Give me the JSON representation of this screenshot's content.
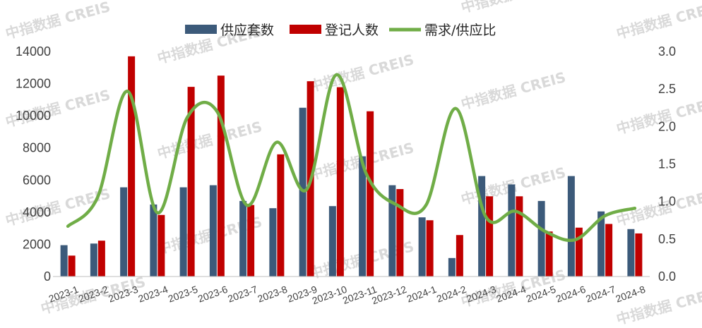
{
  "watermark": "中指数据 CREIS",
  "chart_data": {
    "type": "bar",
    "categories": [
      "2023-1",
      "2023-2",
      "2023-3",
      "2023-4",
      "2023-5",
      "2023-6",
      "2023-7",
      "2023-8",
      "2023-9",
      "2023-10",
      "2023-11",
      "2023-12",
      "2024-1",
      "2024-2",
      "2024-3",
      "2024-4",
      "2024-5",
      "2024-6",
      "2024-7",
      "2024-8"
    ],
    "series": [
      {
        "name": "供应套数",
        "kind": "bar",
        "axis": "left",
        "color": "#3c5a7a",
        "values": [
          1950,
          2050,
          5550,
          4480,
          5550,
          5680,
          4700,
          4250,
          10500,
          4380,
          7480,
          5680,
          3680,
          1150,
          6250,
          5730,
          4700,
          6250,
          4050,
          2950
        ]
      },
      {
        "name": "登记人数",
        "kind": "bar",
        "axis": "left",
        "color": "#c00000",
        "values": [
          1300,
          2230,
          13700,
          3830,
          11800,
          12500,
          4450,
          7600,
          12150,
          11780,
          10280,
          5440,
          3500,
          2580,
          4990,
          4990,
          2800,
          3040,
          3270,
          2680
        ]
      },
      {
        "name": "需求/供应比",
        "kind": "line",
        "axis": "right",
        "color": "#70ad47",
        "values": [
          0.67,
          1.06,
          2.47,
          0.85,
          2.12,
          2.2,
          0.95,
          1.79,
          1.16,
          2.69,
          1.37,
          0.96,
          0.95,
          2.24,
          0.8,
          0.87,
          0.6,
          0.49,
          0.81,
          0.91
        ]
      }
    ],
    "ylim_left": [
      0,
      14000
    ],
    "yticks_left": [
      0,
      2000,
      4000,
      6000,
      8000,
      10000,
      12000,
      14000
    ],
    "ylim_right": [
      0,
      3.0
    ],
    "yticks_right": [
      "0.0",
      "0.5",
      "1.0",
      "1.5",
      "2.0",
      "2.5",
      "3.0"
    ],
    "legend_position": "top",
    "grid": false
  }
}
